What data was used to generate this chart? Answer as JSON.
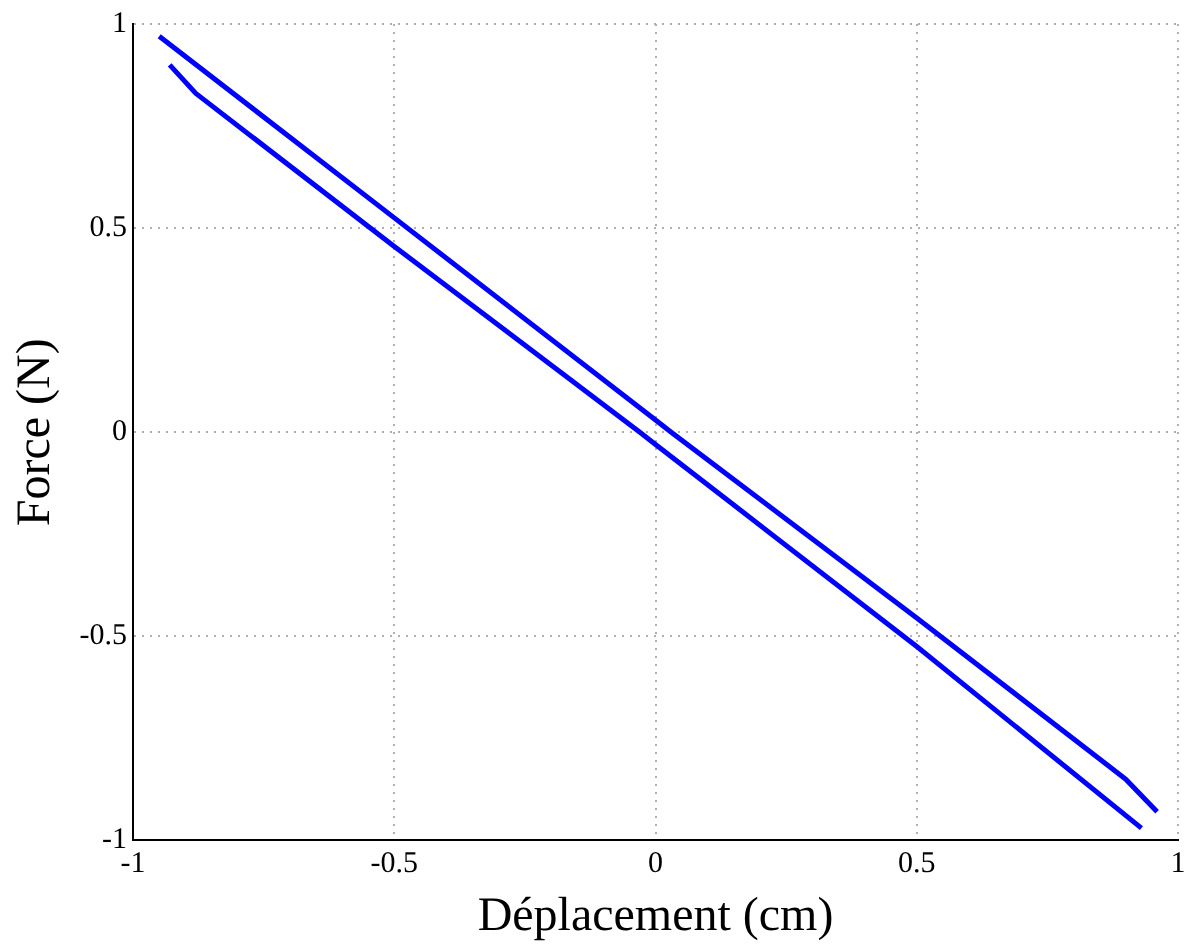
{
  "chart_data": {
    "type": "line",
    "xlabel": "Déplacement (cm)",
    "ylabel": "Force (N)",
    "series": [
      {
        "color": "#0000ff",
        "x": [
          -0.95,
          -0.5,
          0.0,
          0.03,
          0.5,
          0.9,
          0.96
        ],
        "values": [
          0.97,
          0.525,
          0.03,
          0.0,
          -0.455,
          -0.85,
          -0.93
        ]
      },
      {
        "color": "#0000ff",
        "x": [
          -0.93,
          -0.88,
          -0.5,
          -0.03,
          0.0,
          0.5,
          0.93
        ],
        "values": [
          0.9,
          0.83,
          0.455,
          0.0,
          -0.03,
          -0.525,
          -0.97
        ]
      }
    ],
    "xlim": [
      -1,
      1
    ],
    "ylim": [
      -1,
      1
    ],
    "xticks": [
      -1,
      -0.5,
      0,
      0.5,
      1
    ],
    "yticks": [
      -1,
      -0.5,
      0,
      0.5,
      1
    ],
    "grid": true,
    "legend": false,
    "marker": "none",
    "line_style": "solid"
  }
}
